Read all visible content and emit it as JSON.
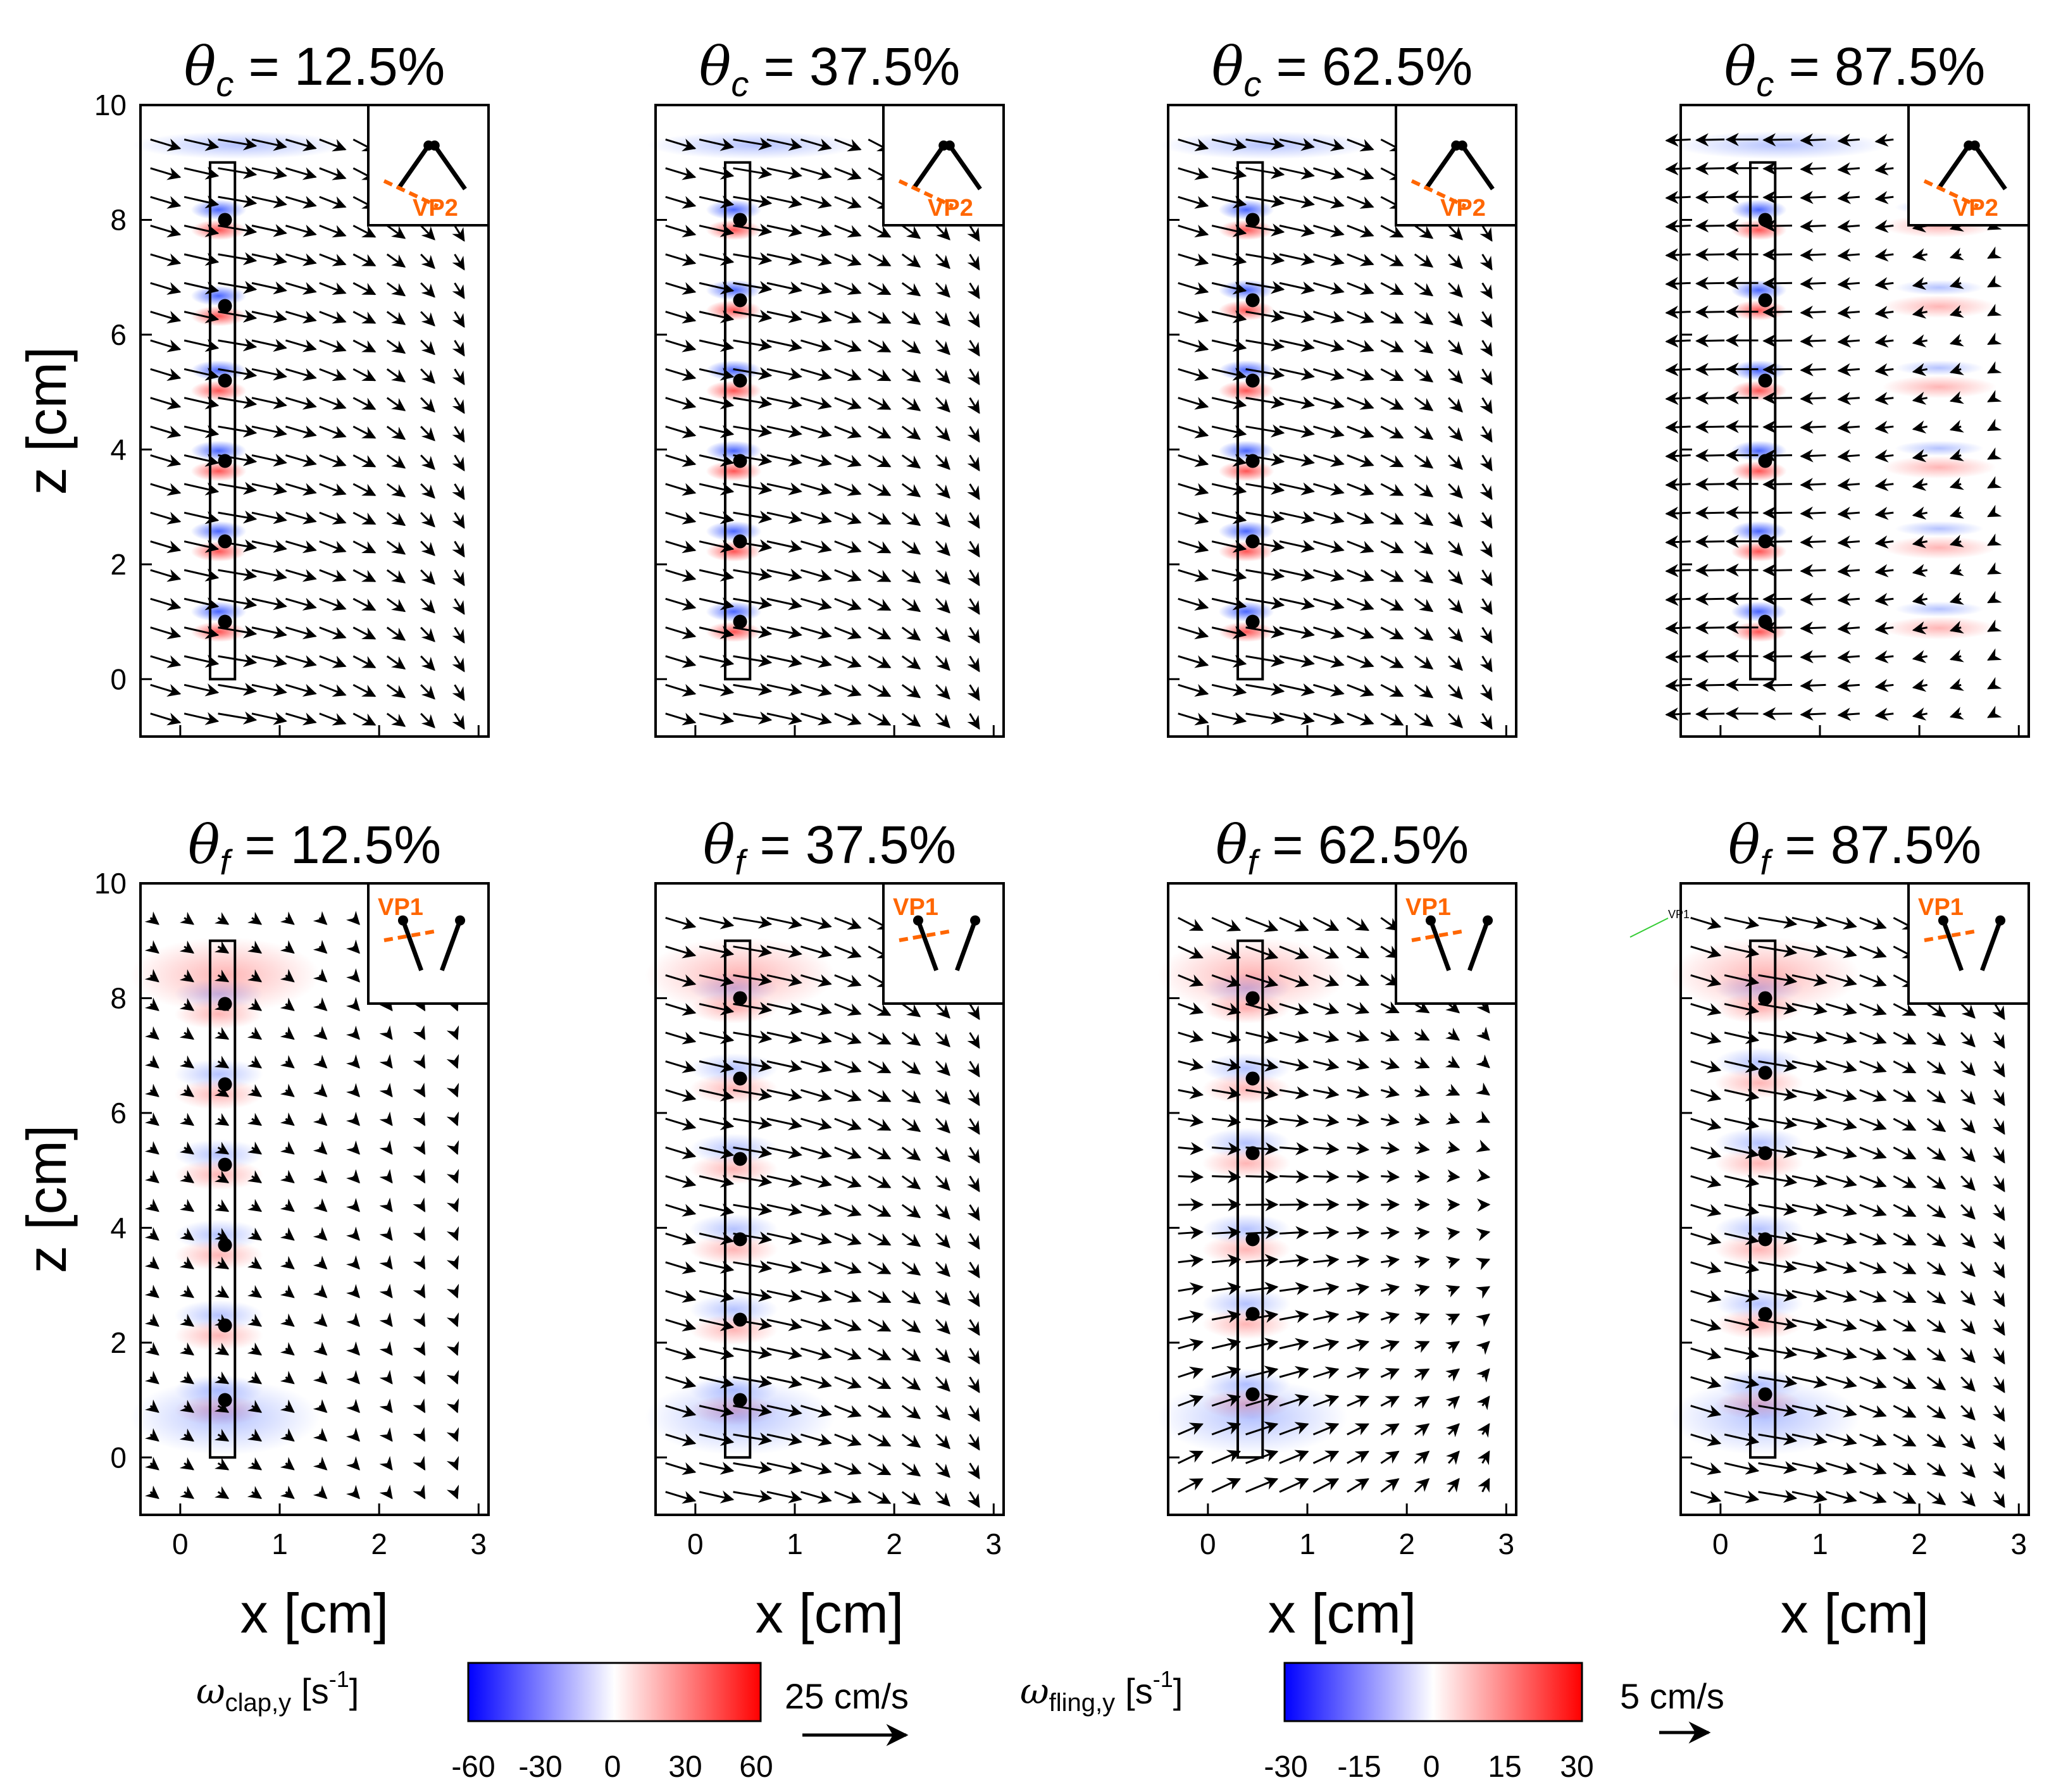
{
  "chart_data": [
    {
      "type": "heatmap",
      "id": "clap-12.5",
      "title": {
        "symbol": "θ",
        "sub": "c",
        "rest": " = 12.5%"
      },
      "inset_label": "VP2",
      "xlabel": "",
      "ylabel": "z [cm]",
      "xlim": [
        -0.4,
        3.1
      ],
      "ylim": [
        -1,
        10
      ],
      "xticks": [
        "0",
        "1",
        "2",
        "3"
      ],
      "yticks": [
        "0",
        "2",
        "4",
        "6",
        "8",
        "10"
      ],
      "show_xticklabels": false,
      "show_yticklabels": true,
      "colorbar": "clap",
      "dots_z": [
        8.0,
        6.5,
        5.2,
        3.8,
        2.4,
        1.0
      ],
      "flow": "right"
    },
    {
      "type": "heatmap",
      "id": "clap-37.5",
      "title": {
        "symbol": "θ",
        "sub": "c",
        "rest": " = 37.5%"
      },
      "inset_label": "VP2",
      "xlabel": "",
      "ylabel": "",
      "xlim": [
        -0.4,
        3.1
      ],
      "ylim": [
        -1,
        10
      ],
      "xticks": [
        "0",
        "1",
        "2",
        "3"
      ],
      "yticks": [
        "0",
        "2",
        "4",
        "6",
        "8",
        "10"
      ],
      "show_xticklabels": false,
      "show_yticklabels": false,
      "colorbar": "clap",
      "dots_z": [
        8.0,
        6.6,
        5.2,
        3.8,
        2.4,
        1.0
      ],
      "flow": "right"
    },
    {
      "type": "heatmap",
      "id": "clap-62.5",
      "title": {
        "symbol": "θ",
        "sub": "c",
        "rest": " = 62.5%"
      },
      "inset_label": "VP2",
      "xlabel": "",
      "ylabel": "",
      "xlim": [
        -0.4,
        3.1
      ],
      "ylim": [
        -1,
        10
      ],
      "xticks": [
        "0",
        "1",
        "2",
        "3"
      ],
      "yticks": [
        "0",
        "2",
        "4",
        "6",
        "8",
        "10"
      ],
      "show_xticklabels": false,
      "show_yticklabels": false,
      "colorbar": "clap",
      "dots_z": [
        8.0,
        6.6,
        5.2,
        3.8,
        2.4,
        1.0
      ],
      "flow": "right"
    },
    {
      "type": "heatmap",
      "id": "clap-87.5",
      "title": {
        "symbol": "θ",
        "sub": "c",
        "rest": " = 87.5%"
      },
      "inset_label": "VP2",
      "xlabel": "",
      "ylabel": "",
      "xlim": [
        -0.4,
        3.1
      ],
      "ylim": [
        -1,
        10
      ],
      "xticks": [
        "0",
        "1",
        "2",
        "3"
      ],
      "yticks": [
        "0",
        "2",
        "4",
        "6",
        "8",
        "10"
      ],
      "show_xticklabels": false,
      "show_yticklabels": false,
      "colorbar": "clap",
      "dots_z": [
        8.0,
        6.6,
        5.2,
        3.8,
        2.4,
        1.0
      ],
      "flow": "left"
    },
    {
      "type": "heatmap",
      "id": "fling-12.5",
      "title": {
        "symbol": "θ",
        "sub": "f",
        "rest": " = 12.5%"
      },
      "inset_label": "VP1",
      "xlabel": "x [cm]",
      "ylabel": "z [cm]",
      "xlim": [
        -0.4,
        3.1
      ],
      "ylim": [
        -1,
        10
      ],
      "xticks": [
        "0",
        "1",
        "2",
        "3"
      ],
      "yticks": [
        "0",
        "2",
        "4",
        "6",
        "8",
        "10"
      ],
      "show_xticklabels": true,
      "show_yticklabels": true,
      "colorbar": "fling",
      "dots_z": [
        7.9,
        6.5,
        5.1,
        3.7,
        2.3,
        1.0
      ],
      "flow": "weak"
    },
    {
      "type": "heatmap",
      "id": "fling-37.5",
      "title": {
        "symbol": "θ",
        "sub": "f",
        "rest": " = 37.5%"
      },
      "inset_label": "VP1",
      "xlabel": "x [cm]",
      "ylabel": "",
      "xlim": [
        -0.4,
        3.1
      ],
      "ylim": [
        -1,
        10
      ],
      "xticks": [
        "0",
        "1",
        "2",
        "3"
      ],
      "yticks": [
        "0",
        "2",
        "4",
        "6",
        "8",
        "10"
      ],
      "show_xticklabels": true,
      "show_yticklabels": false,
      "colorbar": "fling",
      "dots_z": [
        8.0,
        6.6,
        5.2,
        3.8,
        2.4,
        1.0
      ],
      "flow": "right"
    },
    {
      "type": "heatmap",
      "id": "fling-62.5",
      "title": {
        "symbol": "θ",
        "sub": "f",
        "rest": " = 62.5%"
      },
      "inset_label": "VP1",
      "xlabel": "x [cm]",
      "ylabel": "",
      "xlim": [
        -0.4,
        3.1
      ],
      "ylim": [
        -1,
        10
      ],
      "xticks": [
        "0",
        "1",
        "2",
        "3"
      ],
      "yticks": [
        "0",
        "2",
        "4",
        "6",
        "8",
        "10"
      ],
      "show_xticklabels": true,
      "show_yticklabels": false,
      "colorbar": "fling",
      "dots_z": [
        8.0,
        6.6,
        5.3,
        3.8,
        2.5,
        1.1
      ],
      "flow": "inward"
    },
    {
      "type": "heatmap",
      "id": "fling-87.5",
      "title": {
        "symbol": "θ",
        "sub": "f",
        "rest": " = 87.5%"
      },
      "inset_label": "VP1",
      "xlabel": "x [cm]",
      "ylabel": "",
      "xlim": [
        -0.4,
        3.1
      ],
      "ylim": [
        -1,
        10
      ],
      "xticks": [
        "0",
        "1",
        "2",
        "3"
      ],
      "yticks": [
        "0",
        "2",
        "4",
        "6",
        "8",
        "10"
      ],
      "show_xticklabels": true,
      "show_yticklabels": false,
      "colorbar": "fling",
      "dots_z": [
        8.0,
        6.7,
        5.3,
        3.8,
        2.5,
        1.1
      ],
      "flow": "right",
      "stray_label": "VP1"
    }
  ],
  "colorbars": {
    "clap": {
      "symbol": "ω",
      "sub": "clap,y",
      "unit": "[s",
      "unit_sup": "-1",
      "unit_end": "]",
      "ticks": [
        "-60",
        "-30",
        "0",
        "30",
        "60"
      ],
      "ref_vector": "25 cm/s"
    },
    "fling": {
      "symbol": "ω",
      "sub": "fling,y",
      "unit": "[s",
      "unit_sup": "-1",
      "unit_end": "]",
      "ticks": [
        "-30",
        "-15",
        "0",
        "15",
        "30"
      ],
      "ref_vector": "5 cm/s"
    }
  },
  "colors": {
    "negative": "#0000ff",
    "zero": "#ffffff",
    "positive": "#ff0000",
    "annotation": "#ff6600",
    "stray": "#33cc33"
  }
}
